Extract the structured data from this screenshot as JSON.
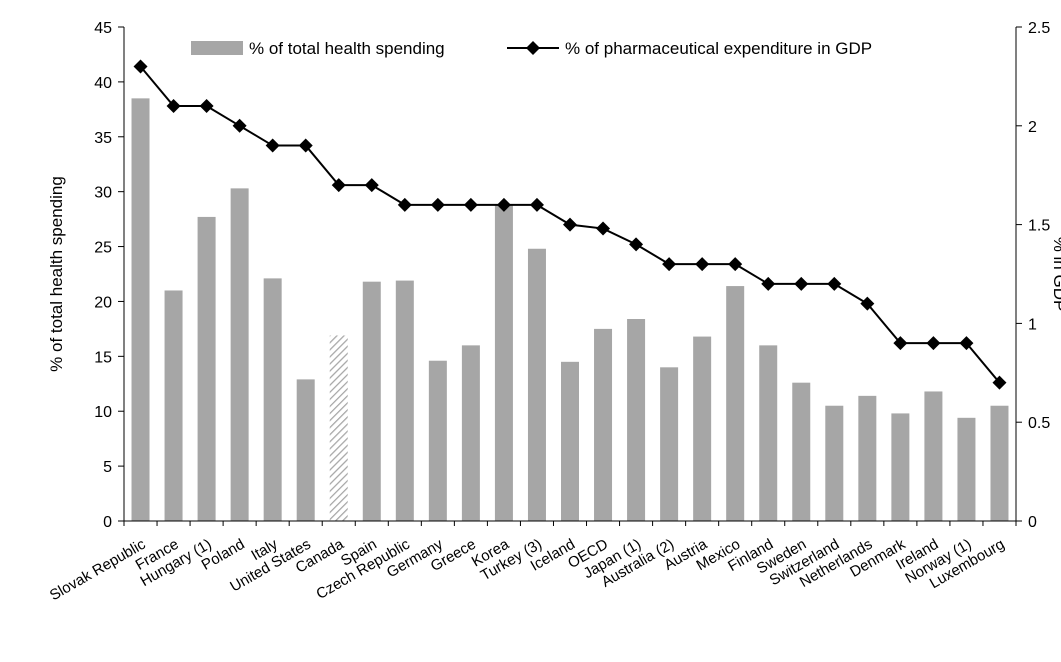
{
  "chart_data": {
    "type": "bar",
    "categories": [
      "Slovak Republic",
      "France",
      "Hungary (1)",
      "Poland",
      "Italy",
      "United States",
      "Canada",
      "Spain",
      "Czech Republic",
      "Germany",
      "Greece",
      "Korea",
      "Turkey (3)",
      "Iceland",
      "OECD",
      "Japan (1)",
      "Australia (2)",
      "Austria",
      "Mexico",
      "Finland",
      "Sweden",
      "Switzerland",
      "Netherlands",
      "Denmark",
      "Ireland",
      "Norway (1)",
      "Luxembourg"
    ],
    "series": [
      {
        "name": "% of total health spending",
        "type": "bar",
        "axis": "left",
        "color": "#a6a6a6",
        "values": [
          38.5,
          21.0,
          27.7,
          30.3,
          22.1,
          12.9,
          16.9,
          21.8,
          21.9,
          14.6,
          16.0,
          28.8,
          24.8,
          14.5,
          17.5,
          18.4,
          14.0,
          16.8,
          21.4,
          16.0,
          12.6,
          10.5,
          11.4,
          9.8,
          11.8,
          9.4,
          10.5
        ],
        "highlight": {
          "index": 6,
          "pattern": "hatched"
        }
      },
      {
        "name": "% of pharmaceutical expenditure in GDP",
        "type": "line",
        "axis": "right",
        "color": "#000000",
        "marker": "diamond",
        "values": [
          2.3,
          2.1,
          2.1,
          2.0,
          1.9,
          1.9,
          1.7,
          1.7,
          1.6,
          1.6,
          1.6,
          1.6,
          1.6,
          1.5,
          1.48,
          1.4,
          1.3,
          1.3,
          1.3,
          1.2,
          1.2,
          1.2,
          1.1,
          0.9,
          0.9,
          0.9,
          0.7
        ]
      }
    ],
    "ylabel": "% of total health spending",
    "y2label": "% in GDP",
    "ylim": [
      0,
      45
    ],
    "y2lim": [
      0,
      2.5
    ],
    "yticks": [
      "0",
      "5",
      "10",
      "15",
      "20",
      "25",
      "30",
      "35",
      "40",
      "45"
    ],
    "y2ticks": [
      "0",
      "0.5",
      "1",
      "1.5",
      "2",
      "2.5"
    ],
    "grid": false,
    "legend": "top"
  }
}
